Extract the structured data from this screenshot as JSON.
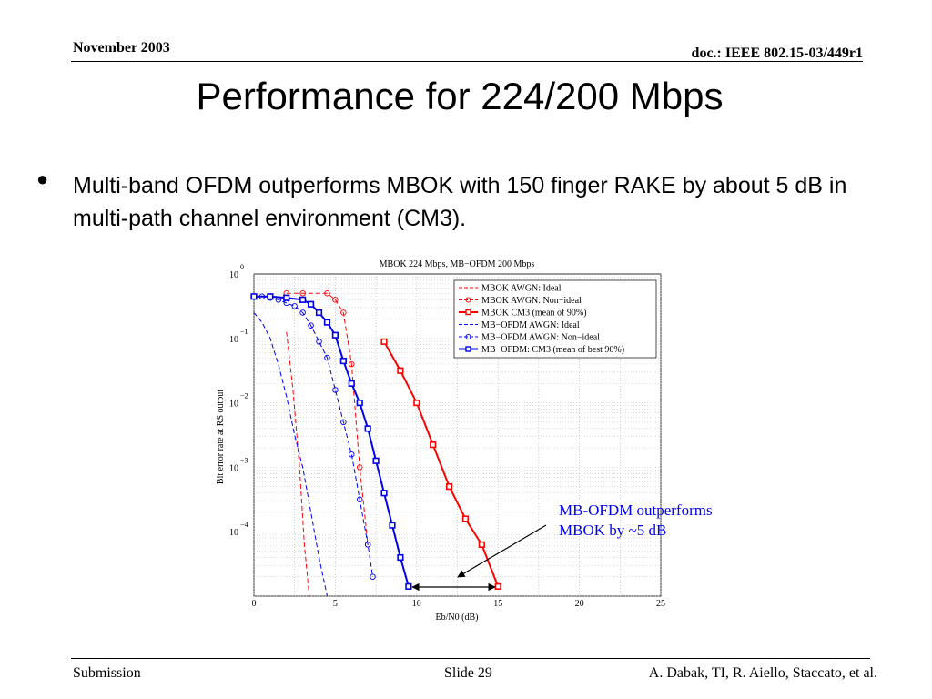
{
  "header": {
    "date": "November 2003",
    "doc": "doc.: IEEE 802.15-03/449r1"
  },
  "slide": {
    "title": "Performance for 224/200 Mbps",
    "bullet": "Multi-band OFDM outperforms MBOK with 150 finger RAKE by about 5 dB in multi-path channel environment (CM3)."
  },
  "footer": {
    "left": "Submission",
    "center": "Slide 29",
    "right": "A. Dabak, TI, R. Aiello, Staccato, et al."
  },
  "annotation": {
    "line1": "MB-OFDM outperforms",
    "line2": "MBOK by ~5 dB"
  },
  "chart_data": {
    "type": "line",
    "title": "MBOK 224 Mbps, MB−OFDM 200 Mbps",
    "xlabel": "Eb/N0 (dB)",
    "ylabel": "Bit error rate at RS output",
    "xlim": [
      0,
      25
    ],
    "ylim": [
      -5,
      0
    ],
    "y_scale": "log10",
    "x_ticks": [
      "0",
      "5",
      "10",
      "15",
      "20",
      "25"
    ],
    "y_ticks": [
      {
        "base": "10",
        "exp": "0",
        "value": 0
      },
      {
        "base": "10",
        "exp": "−1",
        "value": -1
      },
      {
        "base": "10",
        "exp": "−2",
        "value": -2
      },
      {
        "base": "10",
        "exp": "−3",
        "value": -3
      },
      {
        "base": "10",
        "exp": "−4",
        "value": -4
      }
    ],
    "grid": true,
    "legend_position": "top-right",
    "series": [
      {
        "name": "MBOK AWGN: Ideal",
        "color": "#ff0000",
        "dash": "dashed",
        "marker": "none",
        "x": [
          2.0,
          2.4,
          2.8,
          3.1,
          3.4
        ],
        "y": [
          -0.9,
          -1.8,
          -3.0,
          -4.2,
          -5.0
        ]
      },
      {
        "name": "MBOK AWGN: Non−ideal",
        "color": "#ff0000",
        "dash": "dashed",
        "marker": "circle",
        "x": [
          2.0,
          3.0,
          4.5,
          5.0,
          5.5,
          6.0,
          6.5,
          7.0
        ],
        "y": [
          -0.3,
          -0.3,
          -0.3,
          -0.4,
          -0.6,
          -1.4,
          -3.0,
          -4.2
        ]
      },
      {
        "name": "MBOK CM3 (mean of 90%)",
        "color": "#ff0000",
        "dash": "solid",
        "marker": "square",
        "x": [
          8.0,
          9.0,
          10.0,
          11.0,
          12.0,
          13.0,
          14.0,
          15.0
        ],
        "y": [
          -1.05,
          -1.5,
          -2.0,
          -2.65,
          -3.3,
          -3.8,
          -4.2,
          -4.85
        ]
      },
      {
        "name": "MB−OFDM AWGN: Ideal",
        "color": "#0000ee",
        "dash": "dashed",
        "marker": "none",
        "x": [
          0.0,
          0.5,
          1.0,
          1.5,
          2.0,
          2.5,
          3.0,
          3.5,
          4.0,
          4.5
        ],
        "y": [
          -0.6,
          -0.75,
          -1.0,
          -1.4,
          -1.9,
          -2.5,
          -3.0,
          -3.7,
          -4.4,
          -5.0
        ]
      },
      {
        "name": "MB−OFDM AWGN: Non−ideal",
        "color": "#0000ee",
        "dash": "dashed",
        "marker": "circle",
        "x": [
          0.0,
          0.5,
          1.0,
          1.5,
          2.0,
          2.5,
          3.0,
          3.5,
          4.0,
          4.5,
          5.0,
          5.5,
          6.0,
          6.5,
          7.0,
          7.3
        ],
        "y": [
          -0.35,
          -0.35,
          -0.37,
          -0.4,
          -0.45,
          -0.5,
          -0.6,
          -0.8,
          -1.05,
          -1.3,
          -1.8,
          -2.3,
          -2.8,
          -3.5,
          -4.2,
          -4.7
        ]
      },
      {
        "name": "MB−OFDM: CM3 (mean of best 90%)",
        "color": "#0000ee",
        "dash": "solid",
        "marker": "square",
        "x": [
          0.0,
          1.0,
          2.0,
          3.0,
          3.5,
          4.0,
          4.5,
          5.0,
          5.5,
          6.0,
          6.5,
          7.0,
          7.5,
          8.0,
          8.5,
          9.0,
          9.5
        ],
        "y": [
          -0.35,
          -0.35,
          -0.37,
          -0.4,
          -0.47,
          -0.6,
          -0.75,
          -0.95,
          -1.35,
          -1.7,
          -2.0,
          -2.4,
          -2.9,
          -3.4,
          -3.9,
          -4.4,
          -4.85
        ]
      }
    ]
  },
  "colors": {
    "mbok": "#ff0000",
    "mbofdm": "#0000ee",
    "annotation": "#0000ee"
  }
}
